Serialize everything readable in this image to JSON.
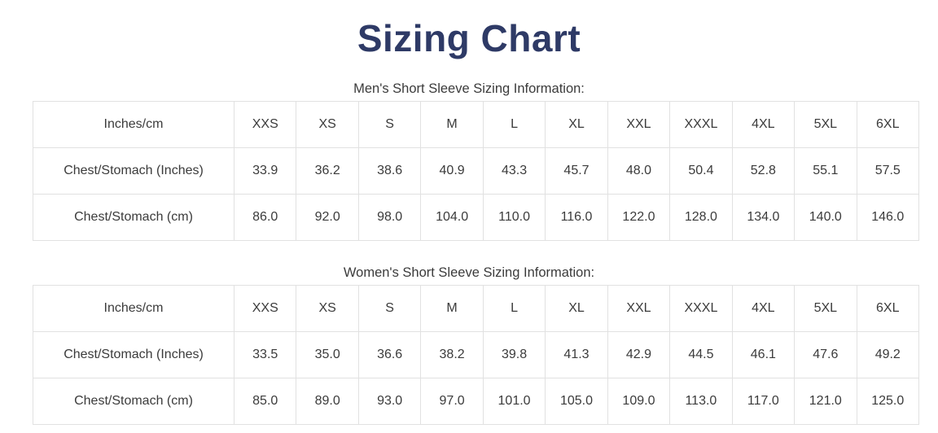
{
  "page": {
    "title": "Sizing Chart"
  },
  "colors": {
    "title": "#2e3a66",
    "border": "#e1e1e1",
    "text": "#3b3b3b"
  },
  "tables": [
    {
      "id": "mens",
      "subtitle": "Men's Short Sleeve Sizing Information:",
      "header": [
        "Inches/cm",
        "XXS",
        "XS",
        "S",
        "M",
        "L",
        "XL",
        "XXL",
        "XXXL",
        "4XL",
        "5XL",
        "6XL"
      ],
      "rows": [
        {
          "label": "Chest/Stomach (Inches)",
          "values": [
            "33.9",
            "36.2",
            "38.6",
            "40.9",
            "43.3",
            "45.7",
            "48.0",
            "50.4",
            "52.8",
            "55.1",
            "57.5"
          ]
        },
        {
          "label": "Chest/Stomach (cm)",
          "values": [
            "86.0",
            "92.0",
            "98.0",
            "104.0",
            "110.0",
            "116.0",
            "122.0",
            "128.0",
            "134.0",
            "140.0",
            "146.0"
          ]
        }
      ]
    },
    {
      "id": "womens",
      "subtitle": "Women's Short Sleeve Sizing Information:",
      "header": [
        "Inches/cm",
        "XXS",
        "XS",
        "S",
        "M",
        "L",
        "XL",
        "XXL",
        "XXXL",
        "4XL",
        "5XL",
        "6XL"
      ],
      "rows": [
        {
          "label": "Chest/Stomach (Inches)",
          "values": [
            "33.5",
            "35.0",
            "36.6",
            "38.2",
            "39.8",
            "41.3",
            "42.9",
            "44.5",
            "46.1",
            "47.6",
            "49.2"
          ]
        },
        {
          "label": "Chest/Stomach (cm)",
          "values": [
            "85.0",
            "89.0",
            "93.0",
            "97.0",
            "101.0",
            "105.0",
            "109.0",
            "113.0",
            "117.0",
            "121.0",
            "125.0"
          ]
        }
      ]
    }
  ]
}
